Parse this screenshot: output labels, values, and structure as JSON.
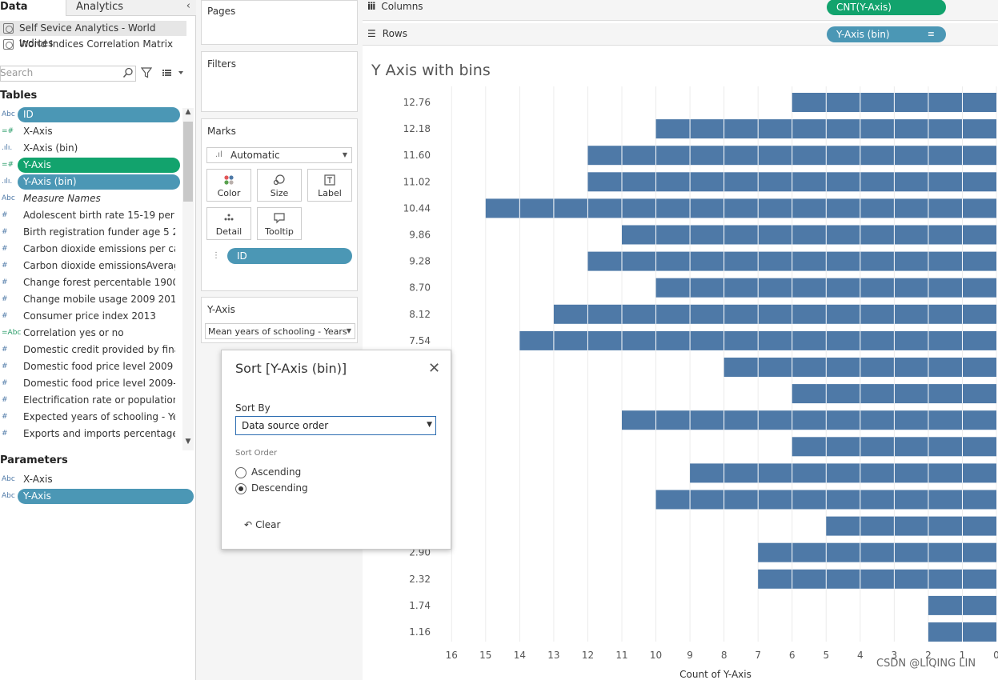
{
  "tabs": {
    "data": "Data",
    "analytics": "Analytics"
  },
  "data_sources": [
    "Self Sevice Analytics - World Indices",
    "World Indices Correlation Matrix"
  ],
  "search": {
    "placeholder": "Search"
  },
  "tables_heading": "Tables",
  "fields": [
    {
      "type": "Abc",
      "label": "ID",
      "pill": "#4b97b5",
      "italic": false
    },
    {
      "type": "=#",
      "label": "X-Axis",
      "pill": null,
      "italic": false
    },
    {
      "type": ".ılı.",
      "label": "X-Axis (bin)",
      "pill": null,
      "italic": false
    },
    {
      "type": "=#",
      "label": "Y-Axis",
      "pill": "#12a36d",
      "italic": false
    },
    {
      "type": ".ılı.",
      "label": "Y-Axis (bin)",
      "pill": "#4b97b5",
      "italic": false
    },
    {
      "type": "Abc",
      "label": "Measure Names",
      "pill": null,
      "italic": true
    },
    {
      "type": "#",
      "label": "Adolescent birth rate 15-19 per 1...",
      "pill": null,
      "italic": false
    },
    {
      "type": "#",
      "label": "Birth registration funder age 5 2...",
      "pill": null,
      "italic": false
    },
    {
      "type": "#",
      "label": "Carbon dioxide emissions per ca...",
      "pill": null,
      "italic": false
    },
    {
      "type": "#",
      "label": "Carbon dioxide emissionsAverag...",
      "pill": null,
      "italic": false
    },
    {
      "type": "#",
      "label": "Change forest percentable 1900 ...",
      "pill": null,
      "italic": false
    },
    {
      "type": "#",
      "label": "Change mobile usage 2009 2014",
      "pill": null,
      "italic": false
    },
    {
      "type": "#",
      "label": "Consumer price index 2013",
      "pill": null,
      "italic": false
    },
    {
      "type": "=Abc",
      "label": "Correlation yes or no",
      "pill": null,
      "italic": false
    },
    {
      "type": "#",
      "label": "Domestic credit provided by fina...",
      "pill": null,
      "italic": false
    },
    {
      "type": "#",
      "label": "Domestic food price level 2009 ...",
      "pill": null,
      "italic": false
    },
    {
      "type": "#",
      "label": "Domestic food price level 2009-...",
      "pill": null,
      "italic": false
    },
    {
      "type": "#",
      "label": "Electrification rate or population",
      "pill": null,
      "italic": false
    },
    {
      "type": "#",
      "label": "Expected years of schooling - Ye...",
      "pill": null,
      "italic": false
    },
    {
      "type": "#",
      "label": "Exports and imports percentage ...",
      "pill": null,
      "italic": false
    }
  ],
  "parameters_heading": "Parameters",
  "parameters": [
    {
      "type": "Abc",
      "label": "X-Axis",
      "pill": null
    },
    {
      "type": "Abc",
      "label": "Y-Axis",
      "pill": "#4b97b5"
    }
  ],
  "cards": {
    "pages": "Pages",
    "filters": "Filters",
    "marks": "Marks",
    "mark_type": "Automatic",
    "mark_buttons": [
      "Color",
      "Size",
      "Label",
      "Detail",
      "Tooltip"
    ],
    "marks_pill": "ID",
    "param_card_title": "Y-Axis",
    "param_value": "Mean years of schooling - Years"
  },
  "shelves": {
    "columns_label": "Columns",
    "columns_pill": "CNT(Y-Axis)",
    "columns_color": "#12a36d",
    "rows_label": "Rows",
    "rows_pill": "Y-Axis (bin)",
    "rows_color": "#4b97b5"
  },
  "chart_title": "Y Axis with bins",
  "chart_data": {
    "type": "bar",
    "orientation": "horizontal",
    "x_reversed": true,
    "xlabel": "Count of Y-Axis",
    "xlim": [
      0,
      16.5
    ],
    "xticks": [
      16,
      15,
      14,
      13,
      12,
      11,
      10,
      9,
      8,
      7,
      6,
      5,
      4,
      3,
      2,
      1,
      0
    ],
    "bar_color": "#4e79a7",
    "categories": [
      "12.76",
      "12.18",
      "11.60",
      "11.02",
      "10.44",
      "9.86",
      "9.28",
      "8.70",
      "8.12",
      "7.54",
      "",
      "",
      "",
      "",
      "",
      "",
      "",
      "2.90",
      "2.32",
      "1.74",
      "1.16"
    ],
    "values": [
      6,
      10,
      12,
      12,
      15,
      11,
      12,
      10,
      13,
      14,
      8,
      6,
      11,
      6,
      9,
      10,
      5,
      7,
      7,
      2,
      2
    ]
  },
  "dialog": {
    "title": "Sort [Y-Axis (bin)]",
    "sort_by_label": "Sort By",
    "sort_by_value": "Data source order",
    "sort_order_label": "Sort Order",
    "ascending": "Ascending",
    "descending": "Descending",
    "selected_order": "Descending",
    "clear": "Clear"
  },
  "watermark": "CSDN @LIQING LIN"
}
